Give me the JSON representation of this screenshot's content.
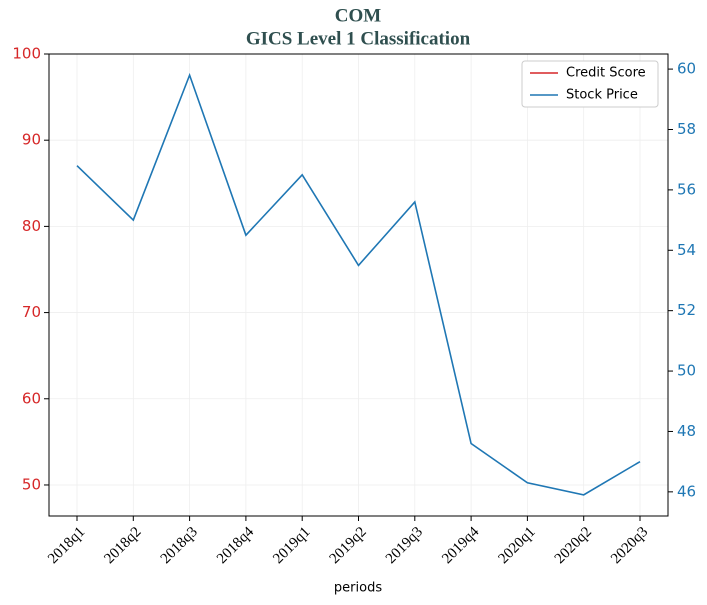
{
  "chart_data": {
    "type": "line",
    "title": "COM",
    "subtitle": "GICS Level 1 Classification",
    "x_label": "periods",
    "categories": [
      "2018q1",
      "2018q2",
      "2018q3",
      "2018q4",
      "2019q1",
      "2019q2",
      "2019q3",
      "2019q4",
      "2020q1",
      "2020q2",
      "2020q3"
    ],
    "series": [
      {
        "name": "Credit Score",
        "color": "#d62728",
        "values": [
          null,
          null,
          null,
          null,
          null,
          null,
          null,
          null,
          null,
          null,
          null
        ]
      },
      {
        "name": "Stock Price",
        "color": "#1f77b4",
        "axis": "y2",
        "values": [
          56.8,
          55.0,
          59.8,
          54.5,
          56.5,
          53.5,
          55.6,
          47.6,
          46.3,
          45.9,
          47.0
        ]
      }
    ],
    "ylim": [
      46.4,
      100
    ],
    "yticks": [
      50,
      60,
      70,
      80,
      90,
      100
    ],
    "y2lim": [
      45.2,
      60.5
    ],
    "y2ticks": [
      46,
      48,
      50,
      52,
      54,
      56,
      58,
      60
    ],
    "grid": true,
    "legend": "upper right"
  }
}
